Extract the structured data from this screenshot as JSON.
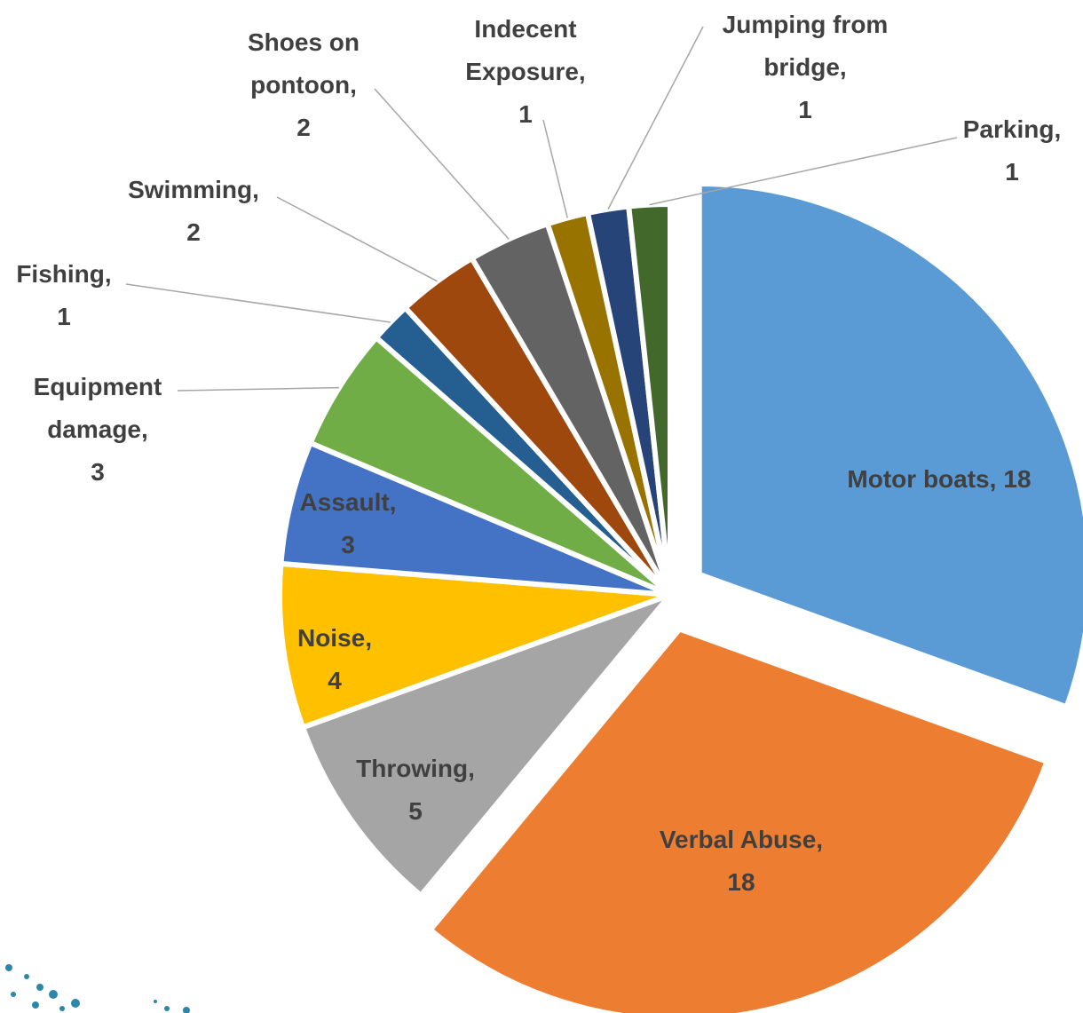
{
  "chart_data": {
    "type": "pie",
    "categories": [
      "Motor boats,",
      "Verbal Abuse,",
      "Throwing,",
      "Noise,",
      "Assault,",
      "Equipment damage,",
      "Fishing,",
      "Swimming,",
      "Shoes on pontoon,",
      "Indecent Exposure,",
      "Jumping from bridge,",
      "Parking,"
    ],
    "values": [
      18,
      18,
      5,
      4,
      3,
      3,
      1,
      2,
      2,
      1,
      1,
      1
    ],
    "colors": [
      "#5b9bd5",
      "#ed7d31",
      "#a5a5a5",
      "#ffc000",
      "#4472c4",
      "#70ad47",
      "#255e91",
      "#9e480e",
      "#636363",
      "#997300",
      "#264478",
      "#43682b"
    ]
  }
}
